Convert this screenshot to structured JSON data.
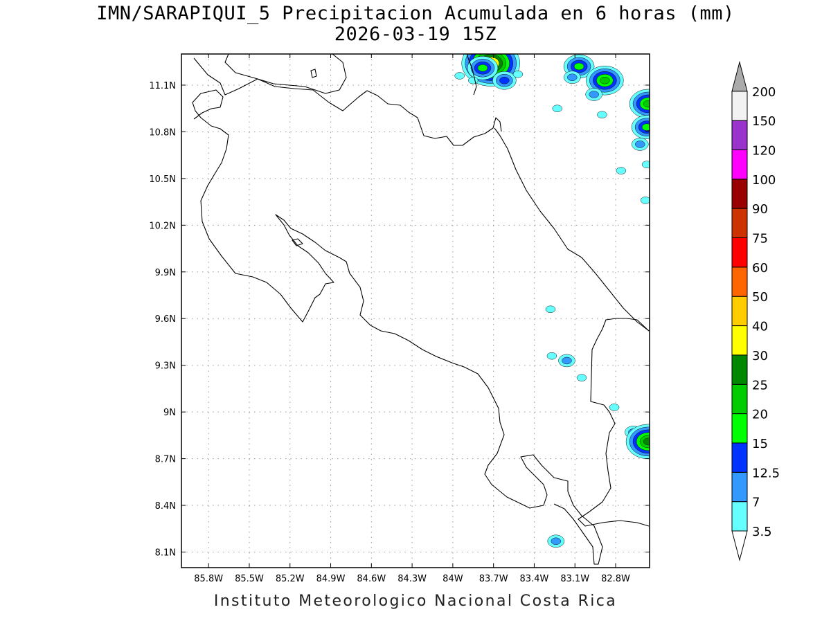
{
  "title": {
    "line1": "IMN/SARAPIQUI_5 Precipitacion Acumulada en 6 horas (mm)",
    "line2": "2026-03-19 15Z"
  },
  "credit": "Instituto Meteorologico Nacional Costa Rica",
  "map": {
    "lon_range": [
      -86.0,
      -82.55
    ],
    "lat_range": [
      8.0,
      11.3
    ],
    "lon_ticks": [
      {
        "value": -85.8,
        "label": "85.8W"
      },
      {
        "value": -85.5,
        "label": "85.5W"
      },
      {
        "value": -85.2,
        "label": "85.2W"
      },
      {
        "value": -84.9,
        "label": "84.9W"
      },
      {
        "value": -84.6,
        "label": "84.6W"
      },
      {
        "value": -84.3,
        "label": "84.3W"
      },
      {
        "value": -84.0,
        "label": "84W"
      },
      {
        "value": -83.7,
        "label": "83.7W"
      },
      {
        "value": -83.4,
        "label": "83.4W"
      },
      {
        "value": -83.1,
        "label": "83.1W"
      },
      {
        "value": -82.8,
        "label": "82.8W"
      }
    ],
    "lat_ticks": [
      {
        "value": 8.1,
        "label": "8.1N"
      },
      {
        "value": 8.4,
        "label": "8.4N"
      },
      {
        "value": 8.7,
        "label": "8.7N"
      },
      {
        "value": 9.0,
        "label": "9N"
      },
      {
        "value": 9.3,
        "label": "9.3N"
      },
      {
        "value": 9.6,
        "label": "9.6N"
      },
      {
        "value": 9.9,
        "label": "9.9N"
      },
      {
        "value": 10.2,
        "label": "10.2N"
      },
      {
        "value": 10.5,
        "label": "10.5N"
      },
      {
        "value": 10.8,
        "label": "10.8N"
      },
      {
        "value": 11.1,
        "label": "11.1N"
      }
    ],
    "gridlines": true
  },
  "colorbar": {
    "levels": [
      "3.5",
      "7",
      "12.5",
      "15",
      "20",
      "25",
      "30",
      "40",
      "50",
      "60",
      "75",
      "90",
      "100",
      "120",
      "150",
      "200"
    ],
    "colors": [
      "#ffffff",
      "#66ffff",
      "#3399ff",
      "#0033ff",
      "#00ff00",
      "#00cc00",
      "#008800",
      "#ffff00",
      "#ffcc00",
      "#ff6600",
      "#ff0000",
      "#cc3300",
      "#990000",
      "#ff00ff",
      "#9933cc",
      "#f2f2f2",
      "#aaaaaa"
    ]
  },
  "precip_cells": [
    {
      "lon": -83.72,
      "lat": 11.24,
      "level": 40
    },
    {
      "lon": -83.78,
      "lat": 11.21,
      "level": 15
    },
    {
      "lon": -83.95,
      "lat": 11.16,
      "level": 3.5
    },
    {
      "lon": -83.85,
      "lat": 11.13,
      "level": 3.5
    },
    {
      "lon": -83.62,
      "lat": 11.13,
      "level": 12.5
    },
    {
      "lon": -83.52,
      "lat": 11.17,
      "level": 3.5
    },
    {
      "lon": -83.07,
      "lat": 11.22,
      "level": 15
    },
    {
      "lon": -83.12,
      "lat": 11.15,
      "level": 7
    },
    {
      "lon": -82.88,
      "lat": 11.13,
      "level": 20
    },
    {
      "lon": -82.96,
      "lat": 11.04,
      "level": 7
    },
    {
      "lon": -83.23,
      "lat": 10.95,
      "level": 3.5
    },
    {
      "lon": -82.9,
      "lat": 10.91,
      "level": 3.5
    },
    {
      "lon": -82.56,
      "lat": 10.98,
      "level": 20
    },
    {
      "lon": -82.57,
      "lat": 10.83,
      "level": 15
    },
    {
      "lon": -82.62,
      "lat": 10.72,
      "level": 7
    },
    {
      "lon": -82.57,
      "lat": 10.59,
      "level": 3.5
    },
    {
      "lon": -82.76,
      "lat": 10.55,
      "level": 3.5
    },
    {
      "lon": -82.58,
      "lat": 10.36,
      "level": 3.5
    },
    {
      "lon": -83.28,
      "lat": 9.66,
      "level": 3.5
    },
    {
      "lon": -83.27,
      "lat": 9.36,
      "level": 3.5
    },
    {
      "lon": -83.16,
      "lat": 9.33,
      "level": 7
    },
    {
      "lon": -83.05,
      "lat": 9.22,
      "level": 3.5
    },
    {
      "lon": -82.81,
      "lat": 9.03,
      "level": 3.5
    },
    {
      "lon": -82.67,
      "lat": 8.87,
      "level": 7
    },
    {
      "lon": -82.56,
      "lat": 8.81,
      "level": 25
    },
    {
      "lon": -83.24,
      "lat": 8.17,
      "level": 7
    }
  ]
}
